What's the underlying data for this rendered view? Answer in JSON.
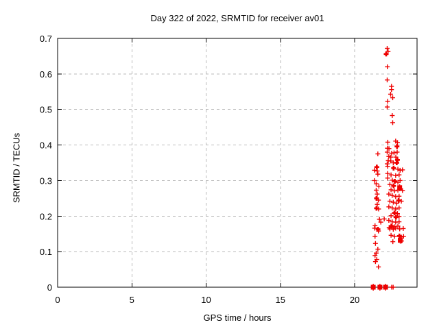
{
  "window": {
    "background": "#ffffff"
  },
  "chart_data": {
    "type": "scatter",
    "title": "Day 322 of 2022, SRMTID for receiver av01",
    "xlabel": "GPS time / hours",
    "ylabel": "SRMTID / TECUs",
    "xlim": [
      0,
      24.2
    ],
    "ylim": [
      0,
      0.7
    ],
    "xticks": [
      0,
      5,
      10,
      15,
      20
    ],
    "xtick_labels": [
      "0",
      "5",
      "10",
      "15",
      "20"
    ],
    "ytick_values": [
      0,
      0.1,
      0.2,
      0.3,
      0.4,
      0.5,
      0.6,
      0.7
    ],
    "ytick_labels": [
      "0",
      "0.1",
      "0.2",
      "0.3",
      "0.4",
      "0.5",
      "0.6",
      "0.7"
    ],
    "grid": true,
    "legend_position": "none",
    "marker": "plus",
    "marker_color": "#ee0000",
    "grid_color": "#b9b9b9",
    "axis_color": "#000000",
    "series": [
      {
        "name": "SRMTID",
        "points": [
          [
            22.19,
            0.672
          ],
          [
            22.25,
            0.663
          ],
          [
            22.12,
            0.656,
            2
          ],
          [
            22.2,
            0.62
          ],
          [
            22.19,
            0.583
          ],
          [
            22.48,
            0.565
          ],
          [
            22.48,
            0.556
          ],
          [
            22.42,
            0.543
          ],
          [
            22.56,
            0.533
          ],
          [
            22.22,
            0.523
          ],
          [
            22.19,
            0.507
          ],
          [
            22.53,
            0.483
          ],
          [
            22.56,
            0.463
          ],
          [
            22.23,
            0.408
          ],
          [
            22.76,
            0.411
          ],
          [
            22.88,
            0.407
          ],
          [
            22.85,
            0.396,
            2
          ],
          [
            22.2,
            0.391
          ],
          [
            22.31,
            0.39
          ],
          [
            21.56,
            0.375
          ],
          [
            22.19,
            0.38
          ],
          [
            22.49,
            0.377
          ],
          [
            22.65,
            0.378
          ],
          [
            22.86,
            0.38
          ],
          [
            22.3,
            0.368
          ],
          [
            22.43,
            0.366
          ],
          [
            22.77,
            0.366
          ],
          [
            22.88,
            0.358,
            2
          ],
          [
            22.26,
            0.356
          ],
          [
            22.43,
            0.355
          ],
          [
            22.6,
            0.35
          ],
          [
            22.83,
            0.35,
            2
          ],
          [
            22.19,
            0.347
          ],
          [
            21.49,
            0.338,
            2
          ],
          [
            21.33,
            0.329
          ],
          [
            21.52,
            0.327
          ],
          [
            21.56,
            0.318
          ],
          [
            21.33,
            0.3
          ],
          [
            21.45,
            0.291
          ],
          [
            21.63,
            0.284
          ],
          [
            21.45,
            0.273
          ],
          [
            21.52,
            0.262
          ],
          [
            21.47,
            0.25,
            2
          ],
          [
            21.6,
            0.245
          ],
          [
            21.52,
            0.233
          ],
          [
            21.47,
            0.222,
            2
          ],
          [
            21.61,
            0.22
          ],
          [
            21.67,
            0.191
          ],
          [
            21.99,
            0.192
          ],
          [
            21.76,
            0.183
          ],
          [
            21.37,
            0.173
          ],
          [
            22.22,
            0.34
          ],
          [
            22.62,
            0.335,
            2
          ],
          [
            22.91,
            0.332
          ],
          [
            23.06,
            0.329
          ],
          [
            23.22,
            0.33
          ],
          [
            22.22,
            0.32
          ],
          [
            22.45,
            0.316
          ],
          [
            22.76,
            0.314
          ],
          [
            22.99,
            0.316
          ],
          [
            22.22,
            0.307
          ],
          [
            22.53,
            0.301
          ],
          [
            22.7,
            0.298,
            2
          ],
          [
            22.91,
            0.295
          ],
          [
            23.06,
            0.3
          ],
          [
            22.37,
            0.289
          ],
          [
            22.62,
            0.285,
            2
          ],
          [
            23.03,
            0.28,
            3
          ],
          [
            23.22,
            0.272
          ],
          [
            22.45,
            0.274
          ],
          [
            22.68,
            0.271
          ],
          [
            22.91,
            0.273
          ],
          [
            22.3,
            0.262
          ],
          [
            22.53,
            0.258
          ],
          [
            22.76,
            0.255
          ],
          [
            22.99,
            0.256
          ],
          [
            22.96,
            0.244,
            2
          ],
          [
            22.37,
            0.242
          ],
          [
            22.6,
            0.239
          ],
          [
            22.83,
            0.236
          ],
          [
            23.14,
            0.242
          ],
          [
            22.3,
            0.226
          ],
          [
            22.53,
            0.223
          ],
          [
            22.76,
            0.22
          ],
          [
            22.99,
            0.223
          ],
          [
            22.68,
            0.209,
            2
          ],
          [
            22.88,
            0.207
          ],
          [
            22.45,
            0.201
          ],
          [
            22.78,
            0.197,
            2
          ],
          [
            22.99,
            0.199
          ],
          [
            22.3,
            0.188
          ],
          [
            22.53,
            0.184
          ],
          [
            22.76,
            0.183
          ],
          [
            22.99,
            0.184
          ],
          [
            22.47,
            0.172,
            2
          ],
          [
            22.68,
            0.17
          ],
          [
            22.91,
            0.172
          ],
          [
            22.37,
            0.164
          ],
          [
            22.6,
            0.163
          ],
          [
            21.34,
            0.166
          ],
          [
            21.57,
            0.163,
            2
          ],
          [
            21.6,
            0.158
          ],
          [
            21.37,
            0.143
          ],
          [
            21.4,
            0.123
          ],
          [
            21.56,
            0.107
          ],
          [
            21.45,
            0.096
          ],
          [
            21.37,
            0.089
          ],
          [
            21.49,
            0.078
          ],
          [
            21.4,
            0.072
          ],
          [
            21.6,
            0.057
          ],
          [
            22.32,
            0.168
          ],
          [
            22.53,
            0.17
          ],
          [
            22.76,
            0.166
          ],
          [
            23.03,
            0.164
          ],
          [
            23.27,
            0.165
          ],
          [
            22.45,
            0.146
          ],
          [
            22.68,
            0.143
          ],
          [
            23.01,
            0.144,
            2
          ],
          [
            23.14,
            0.141
          ],
          [
            23.29,
            0.143
          ],
          [
            22.57,
            0.128
          ],
          [
            23.07,
            0.132,
            3
          ],
          [
            23.16,
            0.13
          ],
          [
            21.25,
            0,
            3
          ],
          [
            21.7,
            0,
            3
          ],
          [
            22.08,
            0,
            3
          ],
          [
            22.49,
            0
          ],
          [
            22.59,
            0
          ]
        ]
      }
    ]
  }
}
